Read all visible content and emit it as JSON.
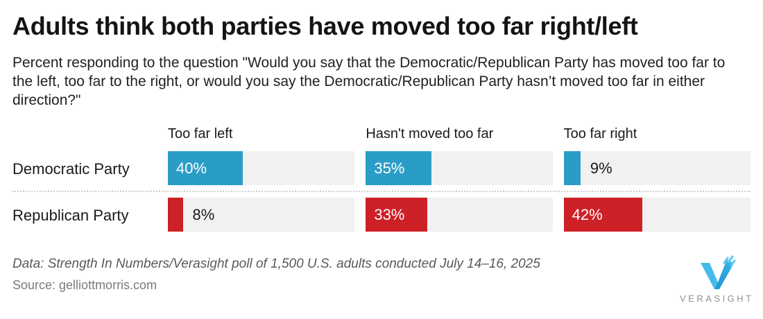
{
  "title": "Adults think both parties have moved too far right/left",
  "subtitle": "Percent responding to the question \"Would you say that the Democratic/Republican Party has moved too far to the left, too far to the right, or would you say the Democratic/Republican Party hasn’t moved too far in either direction?\"",
  "chart_data": {
    "type": "bar",
    "orientation": "horizontal",
    "title": "Adults think both parties have moved too far right/left",
    "categories": [
      "Too far left",
      "Hasn't moved too far",
      "Too far right"
    ],
    "series": [
      {
        "name": "Democratic Party",
        "color": "#2a9dc7",
        "values": [
          40,
          35,
          9
        ]
      },
      {
        "name": "Republican Party",
        "color": "#cd2027",
        "values": [
          8,
          33,
          42
        ]
      }
    ],
    "unit": "%",
    "xlim": [
      0,
      100
    ],
    "value_labels": [
      [
        "40%",
        "35%",
        "9%"
      ],
      [
        "8%",
        "33%",
        "42%"
      ]
    ],
    "track_color": "#f1f1f1",
    "inside_label_color": "#ffffff",
    "outside_label_color": "#1a1a1a",
    "legend_position": "none",
    "grid": false
  },
  "footer": {
    "data_note": "Data: Strength In Numbers/Verasight poll of 1,500 U.S. adults conducted July 14–16, 2025",
    "source": "Source: gelliottmorris.com"
  },
  "logo": {
    "name": "verasight-logo",
    "wordmark": "VERASIGHT",
    "mark_color_light": "#45bce8",
    "mark_color_dark": "#1e95d3"
  }
}
